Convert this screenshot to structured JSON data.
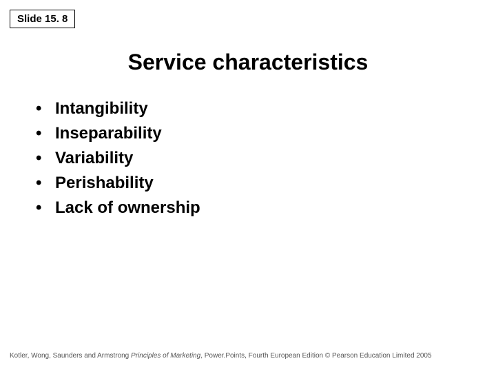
{
  "slideNumber": "Slide 15. 8",
  "title": "Service characteristics",
  "bullets": [
    "Intangibility",
    "Inseparability",
    "Variability",
    "Perishability",
    "Lack of ownership"
  ],
  "footer": {
    "authors": "Kotler, Wong, Saunders and Armstrong ",
    "bookTitle": "Principles of Marketing",
    "rest": ", Power.Points, Fourth European Edition © Pearson Education Limited 2005"
  },
  "colors": {
    "background": "#ffffff",
    "text": "#000000",
    "footerText": "#555555",
    "border": "#000000"
  },
  "typography": {
    "slideNumberFontSize": 15,
    "titleFontSize": 32,
    "bulletFontSize": 24,
    "footerFontSize": 10
  }
}
